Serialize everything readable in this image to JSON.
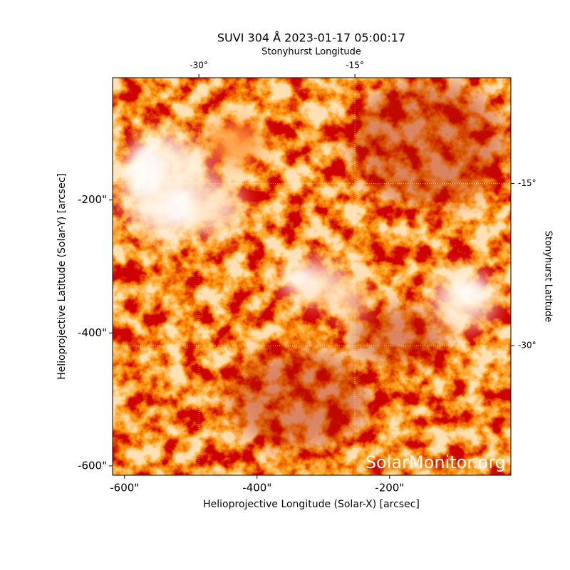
{
  "chart_data": {
    "type": "image",
    "title": "SUVI 304 Å 2023-01-17 05:00:17",
    "xlabel": "Helioprojective Longitude (Solar-X) [arcsec]",
    "ylabel": "Helioprojective Latitude (Solar-Y) [arcsec]",
    "x2label": "Stonyhurst Longitude",
    "y2label": "Stonyhurst Latitude",
    "xlim": [
      -618,
      -17
    ],
    "ylim": [
      -614,
      -16
    ],
    "xticks": [
      {
        "value": -600,
        "label": "-600\""
      },
      {
        "value": -400,
        "label": "-400\""
      },
      {
        "value": -200,
        "label": "-200\""
      }
    ],
    "yticks": [
      {
        "value": -600,
        "label": "-600\""
      },
      {
        "value": -400,
        "label": "-400\""
      },
      {
        "value": -200,
        "label": "-200\""
      }
    ],
    "x2lim": [
      -38.3,
      0
    ],
    "x2ticks": [
      {
        "value": -30,
        "label": "-30°"
      },
      {
        "value": -15,
        "label": "-15°"
      }
    ],
    "y2lim": [
      -42,
      -5.2
    ],
    "y2ticks": [
      {
        "value": -30,
        "label": "-30°"
      },
      {
        "value": -15,
        "label": "-15°"
      }
    ],
    "watermark": "SolarMonitor.org"
  }
}
